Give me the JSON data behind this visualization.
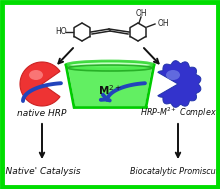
{
  "background_color": "#ffffff",
  "border_color": "#00dd00",
  "border_width": 3.5,
  "beaker_label": "M$^{2+}$",
  "native_hrp_label": "native HRP",
  "complex_label": "HRP-M$^{2+}$ Complex",
  "catalysis_label": "'Native' Catalysis",
  "promiscuity_label": "Biocatalytic Promiscuity",
  "hrp_color": "#ee3333",
  "hrp_highlight": "#ff9999",
  "complex_color_main": "#3333cc",
  "complex_color_light": "#8899ee",
  "beaker_edge_color": "#00cc00",
  "beaker_fill_color": "#55ee55",
  "beaker_ellipse_top": "#33cc33",
  "arrow_color": "#1a1a1a",
  "curve_arrow_color": "#2244bb",
  "text_color": "#111111",
  "molecule_color": "#222222"
}
